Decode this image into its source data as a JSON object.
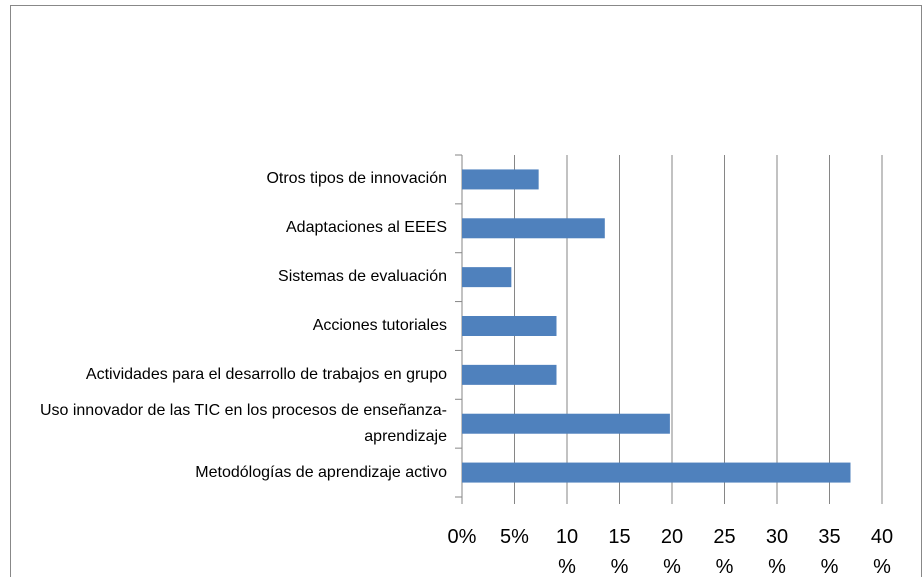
{
  "chart_data": {
    "type": "bar",
    "orientation": "horizontal",
    "categories": [
      "Metodólogías de aprendizaje activo",
      "Uso innovador de las TIC en los procesos de enseñanza-aprendizaje",
      "Actividades para el desarrollo de trabajos en grupo",
      "Acciones tutoriales",
      "Sistemas de evaluación",
      "Adaptaciones al EEES",
      "Otros tipos de innovación"
    ],
    "values": [
      37.0,
      19.8,
      9.0,
      9.0,
      4.7,
      13.6,
      7.3
    ],
    "color": "#4f81bd",
    "xlim": [
      0,
      40
    ],
    "xticks": [
      {
        "value": 0,
        "label": "0%"
      },
      {
        "value": 5,
        "label": "5%"
      },
      {
        "value": 10,
        "label": "10 %"
      },
      {
        "value": 15,
        "label": "15 %"
      },
      {
        "value": 20,
        "label": "20 %"
      },
      {
        "value": 25,
        "label": "25 %"
      },
      {
        "value": 30,
        "label": "30 %"
      },
      {
        "value": 35,
        "label": "35 %"
      },
      {
        "value": 40,
        "label": "40 %"
      }
    ],
    "grid": true
  }
}
